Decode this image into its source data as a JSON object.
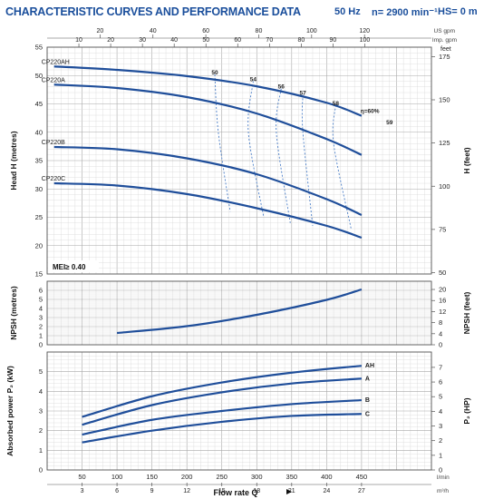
{
  "header": {
    "title": "CHARACTERISTIC CURVES AND PERFORMANCE DATA",
    "frequency": "50 Hz",
    "speed": "n= 2900 min⁻¹",
    "hs": "HS= 0 m"
  },
  "colors": {
    "curve": "#1f4e9a",
    "grid_minor": "#d8d8d8",
    "grid_major": "#a8a8a8",
    "frame": "#555555",
    "label": "#1b4f9c"
  },
  "chart_data": [
    {
      "type": "line",
      "title": "",
      "xlabel": "Flow rate Q",
      "x_unit": "l/min",
      "xlim": [
        0,
        550
      ],
      "x_ticks": [
        "50",
        "100",
        "150",
        "200",
        "250",
        "300",
        "350",
        "400",
        "450"
      ],
      "x_ticks_top": {
        "unit_label": "US gpm",
        "ticks": [
          "20",
          "40",
          "60",
          "80",
          "100",
          "120"
        ]
      },
      "x_ticks_top2": {
        "unit_label": "Imp. gpm",
        "ticks": [
          "10",
          "20",
          "30",
          "40",
          "50",
          "60",
          "70",
          "80",
          "90",
          "100"
        ]
      },
      "ylabel": "Head H (metres)",
      "ylim": [
        15,
        55
      ],
      "y_ticks": [
        "15",
        "20",
        "25",
        "30",
        "35",
        "40",
        "45",
        "50",
        "55"
      ],
      "y2label": "H (feet)",
      "y2_unit": "feet",
      "y2_ticks": [
        "50",
        "75",
        "100",
        "125",
        "150",
        "175"
      ],
      "series": [
        {
          "name": "CP220AH",
          "x": [
            10,
            100,
            200,
            300,
            400,
            450
          ],
          "y": [
            51.6,
            51.0,
            49.9,
            48.1,
            45.2,
            42.9
          ]
        },
        {
          "name": "CP220A",
          "x": [
            10,
            100,
            200,
            300,
            400,
            450
          ],
          "y": [
            48.4,
            47.8,
            46.2,
            43.3,
            38.8,
            36.0
          ]
        },
        {
          "name": "CP220B",
          "x": [
            10,
            100,
            200,
            300,
            400,
            450
          ],
          "y": [
            37.4,
            37.0,
            35.4,
            32.6,
            28.2,
            25.4
          ]
        },
        {
          "name": "CP220C",
          "x": [
            10,
            100,
            200,
            300,
            400,
            450
          ],
          "y": [
            31.0,
            30.6,
            29.1,
            26.6,
            23.5,
            21.4
          ]
        }
      ],
      "efficiency_labels": [
        "50",
        "54",
        "56",
        "57",
        "58",
        "η=60%",
        "59"
      ],
      "efficiency_positions": [
        {
          "label": "50",
          "x": 240,
          "y": 50.2
        },
        {
          "label": "54",
          "x": 295,
          "y": 49.0
        },
        {
          "label": "56",
          "x": 335,
          "y": 47.7
        },
        {
          "label": "57",
          "x": 366,
          "y": 46.6
        },
        {
          "label": "58",
          "x": 413,
          "y": 44.8
        },
        {
          "label": "η=60%",
          "x": 462,
          "y": 43.4
        },
        {
          "label": "59",
          "x": 490,
          "y": 41.4
        }
      ],
      "efficiency_contours": [
        {
          "x": [
            240,
            245,
            262
          ],
          "y": [
            50.2,
            40.0,
            26.0
          ]
        },
        {
          "x": [
            295,
            288,
            310
          ],
          "y": [
            49.0,
            40.0,
            25.0
          ]
        },
        {
          "x": [
            335,
            328,
            348
          ],
          "y": [
            47.7,
            40.0,
            24.0
          ]
        },
        {
          "x": [
            366,
            366,
            380
          ],
          "y": [
            46.6,
            40.0,
            23.5
          ]
        },
        {
          "x": [
            413,
            410,
            435
          ],
          "y": [
            44.8,
            38.0,
            23.0
          ]
        }
      ],
      "annotation": "MEI≥ 0.40"
    },
    {
      "type": "line",
      "ylabel": "NPSH (metres)",
      "ylim": [
        0,
        7
      ],
      "y_ticks": [
        "0",
        "1",
        "2",
        "3",
        "4",
        "5",
        "6"
      ],
      "y2label": "NPSH (feet)",
      "y2_ticks": [
        "0",
        "4",
        "8",
        "12",
        "16",
        "20"
      ],
      "series": [
        {
          "name": "",
          "x": [
            100,
            200,
            300,
            400,
            450
          ],
          "y": [
            1.3,
            2.05,
            3.3,
            4.95,
            6.1
          ]
        }
      ]
    },
    {
      "type": "line",
      "ylabel": "Absorbed power P₂ (kW)",
      "ylim": [
        0,
        6
      ],
      "y_ticks": [
        "0",
        "1",
        "2",
        "3",
        "4",
        "5"
      ],
      "y2label": "P₂ (HP)",
      "y2_ticks": [
        "0",
        "1",
        "2",
        "3",
        "4",
        "5",
        "6",
        "7"
      ],
      "x_ticks_bottom2": {
        "unit_label": "m³/h",
        "ticks": [
          "3",
          "6",
          "9",
          "12",
          "15",
          "18",
          "21",
          "24",
          "27"
        ]
      },
      "series": [
        {
          "name": "AH",
          "x": [
            50,
            150,
            250,
            350,
            450
          ],
          "y": [
            2.7,
            3.75,
            4.45,
            4.95,
            5.3
          ]
        },
        {
          "name": "A",
          "x": [
            50,
            150,
            250,
            350,
            450
          ],
          "y": [
            2.3,
            3.3,
            3.95,
            4.4,
            4.65
          ]
        },
        {
          "name": "B",
          "x": [
            50,
            150,
            250,
            350,
            450
          ],
          "y": [
            1.8,
            2.55,
            3.0,
            3.35,
            3.55
          ]
        },
        {
          "name": "C",
          "x": [
            50,
            150,
            250,
            350,
            450
          ],
          "y": [
            1.4,
            2.0,
            2.45,
            2.75,
            2.85
          ]
        }
      ]
    }
  ]
}
